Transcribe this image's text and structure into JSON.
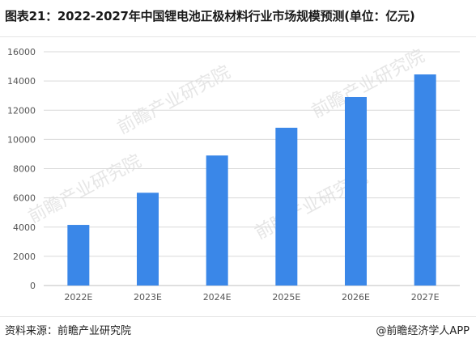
{
  "title": "图表21：2022-2027年中国锂电池正极材料行业市场规模预测(单位：亿元)",
  "source_label": "资料来源：前瞻产业研究院",
  "brand_label": "@前瞻经济学人APP",
  "watermark": "前瞻产业研究院",
  "colors": {
    "bar": "#3a87e8",
    "grid": "#d9d9d9",
    "axis": "#bfbfbf",
    "watermark": "#e6e6e6"
  },
  "chart_data": {
    "type": "bar",
    "categories": [
      "2022E",
      "2023E",
      "2024E",
      "2025E",
      "2026E",
      "2027E"
    ],
    "values": [
      4150,
      6350,
      8900,
      10800,
      12900,
      14450
    ],
    "ylim": [
      0,
      16000
    ],
    "yticks": [
      0,
      2000,
      4000,
      6000,
      8000,
      10000,
      12000,
      14000,
      16000
    ],
    "grid": true,
    "legend": "none"
  }
}
